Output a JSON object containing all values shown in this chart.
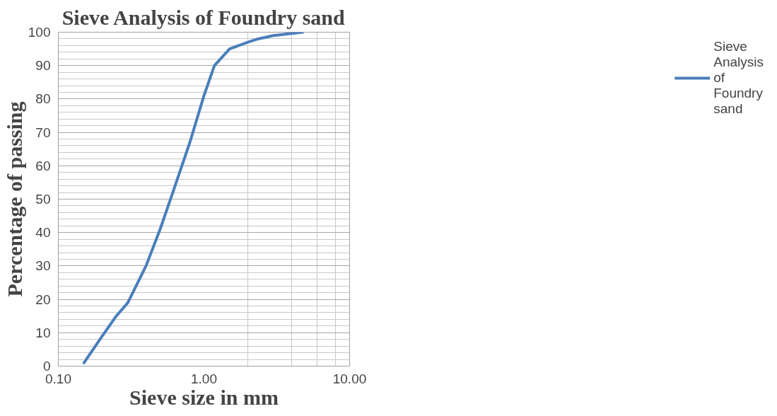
{
  "chart_data": {
    "type": "line",
    "title": "Sieve Analysis of Foundry sand",
    "xlabel": "Sieve size in mm",
    "ylabel": "Percentage of passing",
    "x": [
      0.15,
      0.2,
      0.25,
      0.3,
      0.4,
      0.5,
      0.6,
      0.8,
      1.0,
      1.18,
      1.5,
      2.0,
      2.36,
      3.0,
      4.75
    ],
    "series": [
      {
        "name": "Sieve Analysis of Foundry sand",
        "color": "#4a7ebb",
        "values": [
          1,
          9,
          15,
          19,
          30,
          41,
          51,
          67,
          81,
          90,
          95,
          97,
          98,
          99,
          100
        ]
      }
    ],
    "log": "x",
    "xlim": [
      0.1,
      10
    ],
    "xticks": [
      {
        "value": 0.1,
        "label": "0.10"
      },
      {
        "value": 1,
        "label": "1.00"
      },
      {
        "value": 10,
        "label": "10.00"
      }
    ],
    "ylim": [
      0,
      100
    ],
    "yticks": [
      0,
      10,
      20,
      30,
      40,
      50,
      60,
      70,
      80,
      90,
      100
    ],
    "grid": true,
    "legend": "right",
    "marker": "none",
    "line_style": "solid"
  }
}
